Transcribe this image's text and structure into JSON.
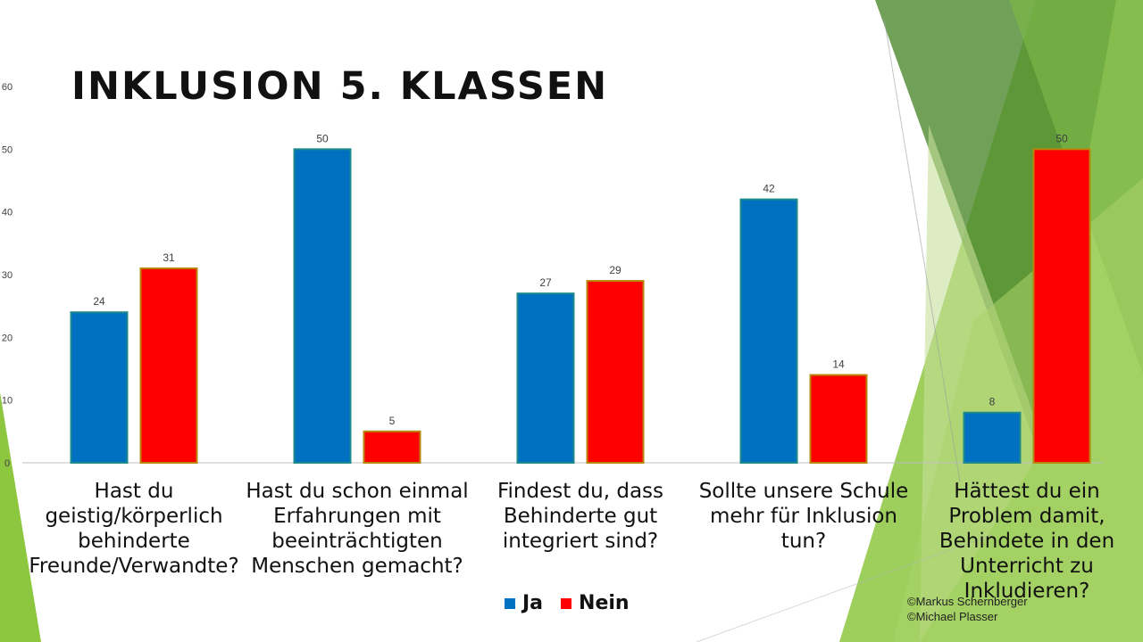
{
  "slide": {
    "title": "INKLUSION 5. KLASSEN",
    "credit_1": "©Markus Schernberger",
    "credit_2": "©Michael Plasser"
  },
  "colors": {
    "ja": "#0070c0",
    "nein": "#ff0000",
    "ja_border": "#1f8a8a",
    "nein_border": "#b8860b",
    "accent_green": "#8dc63f",
    "dark_green": "#4e8a2e"
  },
  "chart_data": {
    "type": "bar",
    "categories": [
      "Hast du geistig/körperlich behinderte Freunde/Verwandte?",
      "Hast du schon einmal Erfahrungen mit beeinträchtigten Menschen gemacht?",
      "Findest du, dass Behinderte gut integriert sind?",
      "Sollte unsere Schule mehr für Inklusion tun?",
      "Hättest du ein Problem damit, Behindete in den Unterricht zu Inkludieren?"
    ],
    "series": [
      {
        "name": "Ja",
        "values": [
          24,
          50,
          27,
          42,
          8
        ]
      },
      {
        "name": "Nein",
        "values": [
          31,
          5,
          29,
          14,
          50
        ]
      }
    ],
    "yticks": [
      0,
      10,
      20,
      30,
      40,
      50,
      60
    ],
    "ylim": [
      0,
      60
    ],
    "grid": false,
    "legend": "bottom-center",
    "data_labels": true
  }
}
